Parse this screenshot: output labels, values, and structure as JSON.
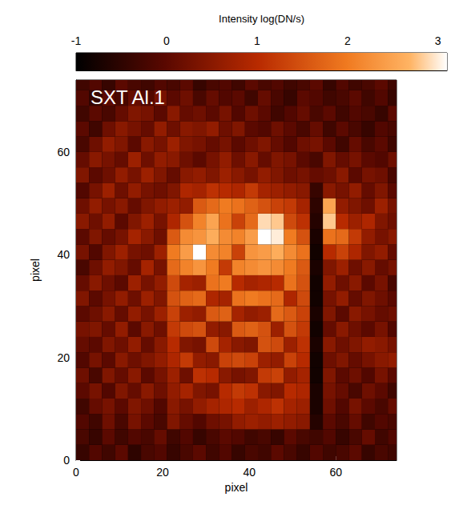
{
  "chart_data": {
    "type": "heatmap",
    "title": "SXT Al.1",
    "x_label": "pixel",
    "y_label": "pixel",
    "xlim": [
      0,
      74
    ],
    "ylim": [
      0,
      74
    ],
    "xticks": [
      0,
      20,
      40,
      60
    ],
    "yticks": [
      0,
      20,
      40,
      60
    ],
    "x": [
      0,
      3,
      6,
      9,
      12,
      15,
      18,
      21,
      24,
      27,
      30,
      33,
      36,
      39,
      42,
      45,
      48,
      51,
      54,
      57,
      60,
      63,
      66,
      69,
      72
    ],
    "y": [
      0,
      3,
      6,
      9,
      12,
      15,
      18,
      21,
      24,
      27,
      30,
      33,
      36,
      39,
      42,
      45,
      48,
      51,
      54,
      57,
      60,
      63,
      66,
      69,
      72
    ],
    "z": [
      [
        -0.4,
        -0.1,
        -0.3,
        0.0,
        -0.5,
        -0.2,
        -0.1,
        -0.4,
        -0.2,
        0.0,
        -0.3,
        -0.1,
        -0.4,
        -0.2,
        -0.3,
        0.0,
        -0.2,
        -0.4,
        -0.1,
        -0.3,
        -0.2,
        0.0,
        -0.4,
        -0.2,
        -0.3
      ],
      [
        -0.2,
        -0.4,
        0.0,
        -0.3,
        -0.1,
        -0.2,
        0.1,
        -0.3,
        -0.1,
        -0.4,
        -0.2,
        0.0,
        -0.1,
        -0.3,
        -0.2,
        -0.4,
        0.0,
        -0.2,
        -0.3,
        -0.1,
        -0.4,
        -0.2,
        0.1,
        -0.3,
        -0.1
      ],
      [
        -0.1,
        -0.3,
        0.2,
        -0.2,
        0.3,
        0.0,
        -0.2,
        0.4,
        0.1,
        -0.1,
        0.2,
        0.3,
        0.6,
        0.7,
        0.6,
        0.7,
        0.6,
        0.5,
        -0.6,
        0.0,
        -0.2,
        0.1,
        -0.3,
        -0.1,
        -0.2
      ],
      [
        -0.3,
        0.1,
        0.3,
        0.0,
        0.4,
        0.2,
        -0.1,
        0.5,
        0.3,
        0.6,
        0.8,
        0.9,
        1.0,
        0.7,
        0.9,
        1.1,
        0.8,
        0.7,
        -0.7,
        0.2,
        -0.1,
        0.3,
        0.0,
        -0.2,
        0.1
      ],
      [
        0.0,
        0.3,
        -0.1,
        0.4,
        0.1,
        0.5,
        0.2,
        0.6,
        0.8,
        0.4,
        0.3,
        1.0,
        1.2,
        1.1,
        0.5,
        0.4,
        1.0,
        0.9,
        -0.7,
        0.3,
        0.1,
        -0.2,
        0.2,
        0.0,
        -0.3
      ],
      [
        0.2,
        -0.2,
        0.4,
        0.1,
        0.5,
        0.0,
        0.3,
        0.7,
        0.2,
        1.1,
        1.0,
        0.5,
        0.3,
        0.4,
        1.2,
        1.3,
        0.6,
        0.8,
        -0.8,
        0.4,
        0.0,
        0.2,
        -0.1,
        0.3,
        0.0
      ],
      [
        -0.1,
        0.3,
        0.0,
        0.5,
        0.2,
        0.4,
        0.6,
        0.9,
        1.2,
        0.6,
        0.5,
        1.3,
        1.4,
        1.3,
        0.7,
        0.6,
        1.3,
        1.0,
        -0.8,
        0.2,
        0.4,
        0.1,
        0.3,
        0.5,
        0.6
      ],
      [
        0.1,
        0.0,
        0.4,
        0.2,
        0.6,
        0.1,
        0.5,
        1.0,
        0.4,
        0.3,
        1.4,
        0.8,
        0.5,
        0.4,
        1.5,
        1.4,
        0.7,
        1.1,
        -0.7,
        0.5,
        0.2,
        0.4,
        0.6,
        0.5,
        0.3
      ],
      [
        0.3,
        0.4,
        0.1,
        0.6,
        0.0,
        0.5,
        0.2,
        1.2,
        1.4,
        1.5,
        0.6,
        0.5,
        1.6,
        1.7,
        1.5,
        0.7,
        1.5,
        1.2,
        -0.8,
        0.1,
        0.5,
        0.2,
        0.0,
        0.3,
        -0.1
      ],
      [
        0.0,
        0.2,
        0.5,
        0.1,
        0.6,
        0.3,
        0.7,
        1.3,
        0.7,
        0.6,
        1.6,
        1.7,
        0.8,
        0.6,
        0.7,
        1.8,
        1.6,
        1.3,
        -0.7,
        0.4,
        0.0,
        0.5,
        0.3,
        0.1,
        0.2
      ],
      [
        0.4,
        0.0,
        0.3,
        0.6,
        0.2,
        0.7,
        0.4,
        1.5,
        1.7,
        1.8,
        0.9,
        0.8,
        1.9,
        2.0,
        1.9,
        1.8,
        0.9,
        1.4,
        -0.8,
        0.3,
        0.6,
        0.1,
        0.4,
        0.2,
        0.0
      ],
      [
        0.1,
        0.5,
        0.2,
        0.0,
        0.7,
        0.3,
        0.6,
        1.4,
        0.8,
        0.7,
        1.9,
        2.0,
        1.0,
        0.8,
        0.9,
        1.0,
        1.9,
        1.5,
        -0.8,
        0.6,
        0.2,
        0.5,
        0.0,
        0.3,
        -0.2
      ],
      [
        -0.2,
        0.2,
        0.6,
        0.4,
        0.1,
        0.8,
        0.3,
        1.8,
        2.1,
        2.3,
        2.0,
        1.2,
        2.1,
        2.2,
        2.3,
        2.2,
        2.0,
        1.6,
        -0.7,
        0.4,
        0.7,
        0.2,
        0.5,
        0.1,
        0.3
      ],
      [
        0.3,
        -0.1,
        0.4,
        0.7,
        0.3,
        0.2,
        0.7,
        2.0,
        2.4,
        3.2,
        2.2,
        2.1,
        1.3,
        2.3,
        2.4,
        2.6,
        2.2,
        1.9,
        -0.8,
        1.0,
        1.3,
        0.9,
        0.4,
        0.6,
        0.1
      ],
      [
        0.0,
        0.4,
        0.1,
        0.3,
        0.8,
        0.5,
        0.2,
        1.6,
        2.2,
        2.3,
        2.6,
        2.2,
        2.1,
        2.4,
        3.3,
        3.0,
        2.0,
        1.5,
        -0.7,
        1.9,
        1.8,
        1.2,
        0.6,
        0.3,
        0.5
      ],
      [
        0.5,
        0.2,
        0.6,
        0.0,
        0.4,
        0.7,
        0.3,
        0.9,
        1.5,
        2.1,
        2.5,
        1.9,
        1.3,
        1.8,
        2.9,
        2.8,
        1.4,
        1.1,
        -0.6,
        2.8,
        1.0,
        0.7,
        0.9,
        0.4,
        0.2
      ],
      [
        0.2,
        0.6,
        0.3,
        0.5,
        0.1,
        0.4,
        0.6,
        0.7,
        0.6,
        1.6,
        1.8,
        2.0,
        1.9,
        1.7,
        1.5,
        1.3,
        1.2,
        0.8,
        -0.5,
        2.5,
        0.6,
        0.4,
        0.2,
        0.7,
        0.3
      ],
      [
        -0.1,
        0.3,
        0.7,
        0.2,
        0.6,
        0.3,
        0.2,
        0.4,
        0.9,
        0.8,
        1.1,
        1.0,
        0.9,
        1.2,
        0.8,
        0.7,
        0.6,
        0.5,
        -0.4,
        0.5,
        0.3,
        0.6,
        0.1,
        0.4,
        0.0
      ],
      [
        0.4,
        0.0,
        0.2,
        0.6,
        0.3,
        0.7,
        0.4,
        0.1,
        0.5,
        0.6,
        0.4,
        0.7,
        0.5,
        0.3,
        0.6,
        0.4,
        0.2,
        0.3,
        0.1,
        0.2,
        0.5,
        0.0,
        0.3,
        0.2,
        -0.2
      ],
      [
        0.1,
        0.5,
        0.3,
        0.1,
        0.7,
        0.2,
        0.6,
        0.5,
        0.2,
        0.0,
        0.3,
        0.6,
        0.2,
        0.5,
        0.1,
        0.4,
        0.3,
        0.0,
        -0.2,
        0.4,
        0.1,
        0.3,
        0.0,
        -0.1,
        0.2
      ],
      [
        -0.2,
        0.2,
        0.6,
        0.4,
        0.0,
        0.5,
        0.3,
        0.7,
        0.4,
        0.3,
        0.1,
        0.3,
        0.0,
        0.2,
        0.4,
        0.1,
        -0.1,
        0.2,
        0.3,
        0.0,
        -0.3,
        0.1,
        -0.2,
        0.0,
        -0.3
      ],
      [
        0.0,
        -0.3,
        0.2,
        0.5,
        0.3,
        0.1,
        0.6,
        0.2,
        0.5,
        0.4,
        0.6,
        0.2,
        0.4,
        0.0,
        -0.1,
        0.2,
        0.0,
        -0.2,
        0.1,
        -0.3,
        0.0,
        -0.2,
        -0.4,
        -0.1,
        -0.2
      ],
      [
        -0.3,
        0.0,
        -0.2,
        0.1,
        0.4,
        0.3,
        0.0,
        0.5,
        0.1,
        0.2,
        0.0,
        0.3,
        -0.1,
        0.2,
        0.0,
        -0.3,
        -0.1,
        0.1,
        -0.2,
        0.0,
        -0.3,
        -0.1,
        -0.2,
        -0.4,
        0.0
      ],
      [
        -0.1,
        -0.4,
        0.0,
        -0.2,
        0.1,
        -0.1,
        0.3,
        0.0,
        0.2,
        -0.2,
        0.1,
        -0.1,
        0.0,
        -0.3,
        0.1,
        -0.2,
        -0.4,
        0.0,
        -0.1,
        -0.3,
        -0.2,
        0.0,
        -0.3,
        -0.1,
        -0.4
      ],
      [
        -0.3,
        -0.1,
        -0.4,
        0.0,
        -0.2,
        -0.3,
        -0.1,
        -0.2,
        0.0,
        -0.4,
        -0.2,
        -0.1,
        -0.3,
        0.0,
        -0.2,
        -0.1,
        -0.3,
        -0.2,
        0.0,
        -0.4,
        -0.1,
        -0.3,
        -0.2,
        0.0,
        -0.3
      ]
    ],
    "colorbar": {
      "label": "Intensity log(DN/s)",
      "range": [
        -1,
        3.1
      ],
      "ticks": [
        -1,
        0,
        1,
        2,
        3
      ]
    }
  }
}
